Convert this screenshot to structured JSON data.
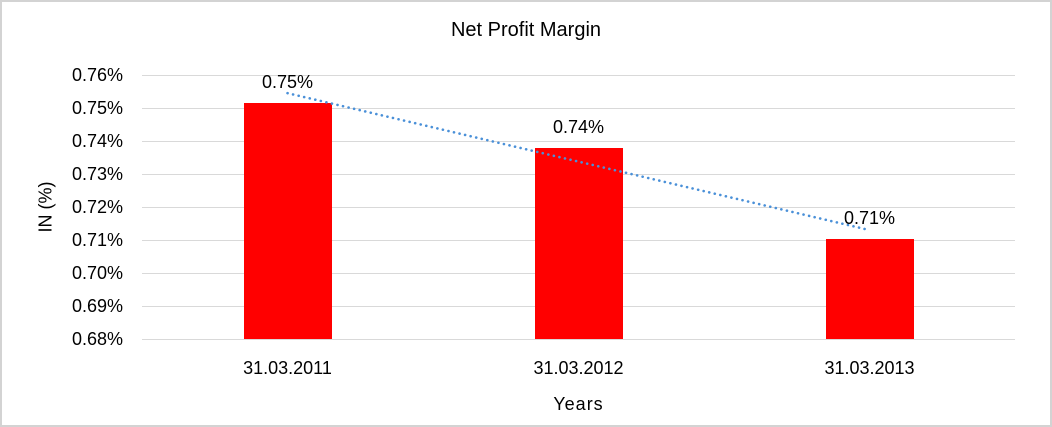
{
  "chart_data": {
    "type": "bar",
    "title": "Net Profit Margin",
    "xlabel": "Years",
    "ylabel": "IN (%)",
    "categories": [
      "31.03.2011",
      "31.03.2012",
      "31.03.2013"
    ],
    "values": [
      0.7515,
      0.738,
      0.7103
    ],
    "data_labels": [
      "0.75%",
      "0.74%",
      "0.71%"
    ],
    "yticks": [
      "0.76%",
      "0.75%",
      "0.74%",
      "0.73%",
      "0.72%",
      "0.71%",
      "0.70%",
      "0.69%",
      "0.68%"
    ],
    "ylim": [
      0.68,
      0.76
    ],
    "ytick_step": 0.01,
    "grid": true,
    "legend": false,
    "trendline": {
      "type": "linear",
      "style": "dotted",
      "start_value": 0.7545,
      "end_value": 0.713
    },
    "colors": {
      "bar": "#FF0000",
      "trendline": "#4A90D8",
      "gridline": "#D9D9D9",
      "text": "#000000",
      "frame_border": "#D3D3D3"
    }
  }
}
